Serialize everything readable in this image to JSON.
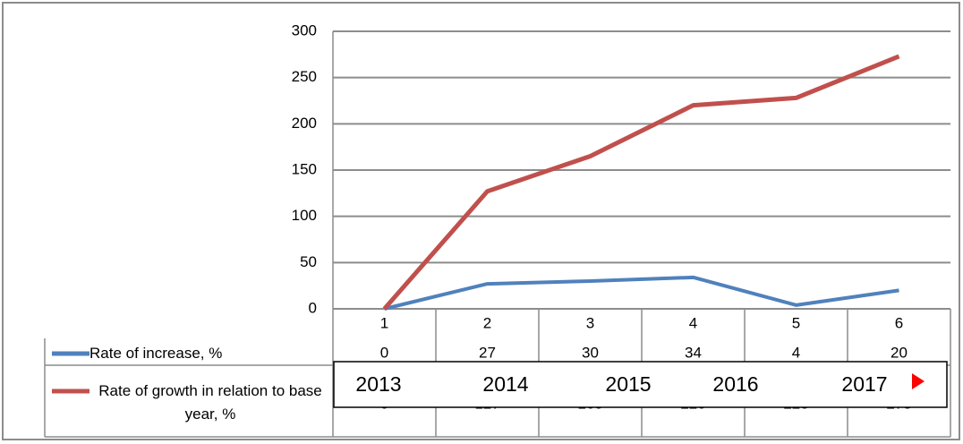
{
  "chart_data": {
    "type": "line",
    "categories": [
      "1",
      "2",
      "3",
      "4",
      "5",
      "6"
    ],
    "series": [
      {
        "name": "Rate of increase, %",
        "color": "#4f81bd",
        "values": [
          0,
          27,
          30,
          34,
          4,
          20
        ]
      },
      {
        "name": "Rate of growth in relation to base year, %",
        "color": "#c0504d",
        "values": [
          0,
          127,
          165,
          220,
          228,
          273
        ]
      }
    ],
    "ylim": [
      0,
      300
    ],
    "yticks": [
      0,
      50,
      100,
      150,
      200,
      250,
      300
    ],
    "grid": true
  },
  "overlay": {
    "years": [
      "2013",
      "2014",
      "2015",
      "2016",
      "2017"
    ]
  }
}
